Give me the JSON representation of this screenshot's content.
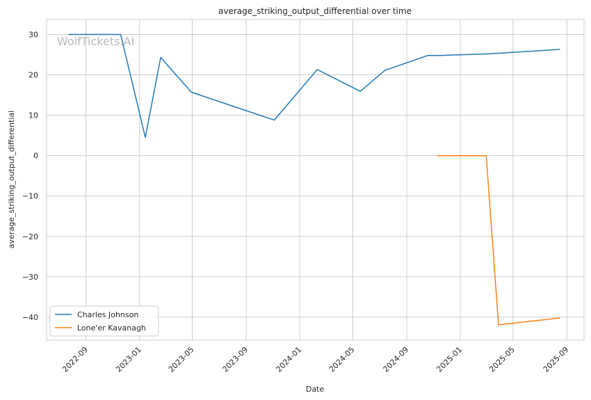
{
  "watermark": "WolfTickets.AI",
  "chart_data": {
    "type": "line",
    "title": "average_striking_output_differential over time",
    "xlabel": "Date",
    "ylabel": "average_striking_output_differential",
    "x_type": "date",
    "xlim": [
      "2022-06-03",
      "2025-10-10"
    ],
    "ylim": [
      -45.7,
      33.7
    ],
    "x_ticks": [
      "2022-09-01",
      "2023-01-01",
      "2023-05-01",
      "2023-09-01",
      "2024-01-01",
      "2024-05-01",
      "2024-09-01",
      "2025-01-01",
      "2025-05-01",
      "2025-09-01"
    ],
    "x_tick_labels": [
      "2022-09",
      "2023-01",
      "2023-05",
      "2023-09",
      "2024-01",
      "2024-05",
      "2024-09",
      "2025-01",
      "2025-05",
      "2025-09"
    ],
    "y_ticks": [
      -40,
      -30,
      -20,
      -10,
      0,
      10,
      20,
      30
    ],
    "y_tick_labels": [
      "−40",
      "−30",
      "−20",
      "−10",
      "0",
      "10",
      "20",
      "30"
    ],
    "grid": true,
    "legend_position": "lower-left",
    "series": [
      {
        "name": "Charles Johnson",
        "color": "#1f77b4",
        "points": [
          {
            "x": "2022-07-23",
            "y": 30.0
          },
          {
            "x": "2022-11-19",
            "y": 30.0
          },
          {
            "x": "2023-01-14",
            "y": 4.5
          },
          {
            "x": "2023-02-18",
            "y": 24.3
          },
          {
            "x": "2023-04-29",
            "y": 15.7
          },
          {
            "x": "2023-11-04",
            "y": 8.8
          },
          {
            "x": "2024-02-10",
            "y": 21.3
          },
          {
            "x": "2024-05-18",
            "y": 15.9
          },
          {
            "x": "2024-07-13",
            "y": 21.1
          },
          {
            "x": "2024-10-19",
            "y": 24.8
          },
          {
            "x": "2024-11-16",
            "y": 24.8
          },
          {
            "x": "2025-03-08",
            "y": 25.2
          },
          {
            "x": "2025-08-16",
            "y": 26.3
          }
        ]
      },
      {
        "name": "Lone'er Kavanagh",
        "color": "#ff7f0e",
        "points": [
          {
            "x": "2024-11-09",
            "y": 0.0
          },
          {
            "x": "2025-03-01",
            "y": 0.0
          },
          {
            "x": "2025-03-29",
            "y": -41.9
          },
          {
            "x": "2025-08-16",
            "y": -40.2
          }
        ]
      }
    ]
  }
}
